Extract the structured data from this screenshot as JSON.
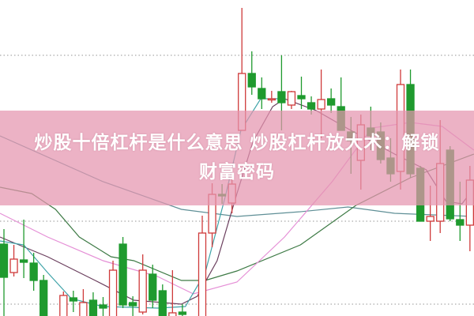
{
  "banner": {
    "title_line1": "炒股十倍杠杆是什么意思 炒股杠杆放大术：解锁",
    "title_line2": "财富密码",
    "background": "#e494af"
  },
  "chart_data": {
    "type": "candlestick",
    "title": "",
    "colors": {
      "up": "#cf3a3a",
      "down": "#1f9a2e",
      "grid": "#aaaaaa"
    },
    "grid": true,
    "candles": [
      {
        "t": 0,
        "o": 9.1,
        "h": 11,
        "l": 0,
        "c": 4.9
      },
      {
        "t": 1,
        "o": 5.5,
        "h": 9,
        "l": 5,
        "c": 7.2
      },
      {
        "t": 2,
        "o": 7.1,
        "h": 12.2,
        "l": 4.8,
        "c": 6.8
      },
      {
        "t": 3,
        "o": 6.7,
        "h": 8,
        "l": 3.2,
        "c": 4.5
      },
      {
        "t": 4,
        "o": 4.5,
        "h": 5.2,
        "l": -1,
        "c": -1
      },
      {
        "t": 6,
        "o": -1,
        "h": 3.1,
        "l": -1,
        "c": 2.6
      },
      {
        "t": 7,
        "o": 2.3,
        "h": 3.2,
        "l": 0.5,
        "c": 1.9
      },
      {
        "t": 8,
        "o": -1,
        "h": 3.4,
        "l": -1,
        "c": 1.7
      },
      {
        "t": 9,
        "o": 2,
        "h": 3,
        "l": -1,
        "c": -1
      },
      {
        "t": 10,
        "o": 1.4,
        "h": 2.4,
        "l": -1,
        "c": 1.0
      },
      {
        "t": 11,
        "o": -1,
        "h": 7,
        "l": -1,
        "c": 5.8
      },
      {
        "t": 12,
        "o": 9.1,
        "h": 10,
        "l": 1,
        "c": 1.4
      },
      {
        "t": 13,
        "o": 1.7,
        "h": 2.5,
        "l": -1,
        "c": 1.3
      },
      {
        "t": 14,
        "o": 0.5,
        "h": 7.8,
        "l": 0.2,
        "c": 5.8
      },
      {
        "t": 15,
        "o": 5.3,
        "h": 6.5,
        "l": 1,
        "c": 2
      },
      {
        "t": 16,
        "o": 3.2,
        "h": 4,
        "l": -1,
        "c": -1
      },
      {
        "t": 17,
        "o": -1,
        "h": 5.8,
        "l": -1,
        "c": 0.4
      },
      {
        "t": 18,
        "o": 0.5,
        "h": 1.5,
        "l": -1,
        "c": 0.2
      },
      {
        "t": 20,
        "o": -1,
        "h": 12.7,
        "l": -1,
        "c": 10.5
      },
      {
        "t": 21,
        "o": 10.5,
        "h": 16.8,
        "l": 8.7,
        "c": 15.4
      },
      {
        "t": 22,
        "o": 15.4,
        "h": 16.7,
        "l": 14.2,
        "c": 15.2
      },
      {
        "t": 23,
        "o": 14.3,
        "h": 17.5,
        "l": 13,
        "c": 16.7
      },
      {
        "t": 24,
        "o": 23.5,
        "h": 39,
        "l": 23.5,
        "c": 30.7
      },
      {
        "t": 25,
        "o": 30.7,
        "h": 33.5,
        "l": 28,
        "c": 29
      },
      {
        "t": 26,
        "o": 28.8,
        "h": 30.2,
        "l": 26.2,
        "c": 27.5
      },
      {
        "t": 27,
        "o": 27.4,
        "h": 28.5,
        "l": 27,
        "c": 27.5
      },
      {
        "t": 28,
        "o": 28.4,
        "h": 33,
        "l": 23.5,
        "c": 27
      },
      {
        "t": 29,
        "o": 26.7,
        "h": 28.5,
        "l": 26.2,
        "c": 28.4
      },
      {
        "t": 30,
        "o": 27.9,
        "h": 30.3,
        "l": 26.2,
        "c": 27.5
      },
      {
        "t": 31,
        "o": 27,
        "h": 27.8,
        "l": 25.5,
        "c": 26.2
      },
      {
        "t": 32,
        "o": 26.2,
        "h": 31.2,
        "l": 22.5,
        "c": 27.4
      },
      {
        "t": 33,
        "o": 27.5,
        "h": 28.8,
        "l": 25.7,
        "c": 26.7
      },
      {
        "t": 34,
        "o": 26.5,
        "h": 30.2,
        "l": 23.5,
        "c": 23.5
      },
      {
        "t": 35,
        "o": 23.3,
        "h": 25.2,
        "l": 18,
        "c": 22.2
      },
      {
        "t": 36,
        "o": 19.7,
        "h": 25.5,
        "l": 16,
        "c": 24.2
      },
      {
        "t": 37,
        "o": 23.8,
        "h": 26.5,
        "l": 21,
        "c": 22.8
      },
      {
        "t": 38,
        "o": 23.3,
        "h": 24.5,
        "l": 19.3,
        "c": 19.8
      },
      {
        "t": 39,
        "o": 20,
        "h": 22.5,
        "l": 17,
        "c": 18
      },
      {
        "t": 40,
        "o": 18.3,
        "h": 31.2,
        "l": 16,
        "c": 29.3
      },
      {
        "t": 41,
        "o": 29.3,
        "h": 31.2,
        "l": 17.5,
        "c": 18
      },
      {
        "t": 42,
        "o": 18.7,
        "h": 19,
        "l": 12,
        "c": 12
      },
      {
        "t": 43,
        "o": 12,
        "h": 16.5,
        "l": 9.5,
        "c": 12.6
      },
      {
        "t": 44,
        "o": 12,
        "h": 24.8,
        "l": 10.5,
        "c": 19.3
      },
      {
        "t": 45,
        "o": 21,
        "h": 21.5,
        "l": 12,
        "c": 12.3
      },
      {
        "t": 46,
        "o": 12.2,
        "h": 17,
        "l": 9.5,
        "c": 11.5
      },
      {
        "t": 47,
        "o": 11.5,
        "h": 19,
        "l": 8.2,
        "c": 17.2
      }
    ],
    "moving_averages": [
      {
        "color": "#5f8f96",
        "points": [
          [
            -0.4,
            22.8
          ],
          [
            10,
            17
          ],
          [
            17.9,
            13.5
          ],
          [
            23.5,
            12.6
          ],
          [
            29.9,
            13.2
          ],
          [
            34.7,
            13.8
          ],
          [
            39.4,
            13
          ],
          [
            47.4,
            12.6
          ]
        ]
      },
      {
        "color": "#3d7a45",
        "points": [
          [
            -0.4,
            16.3
          ],
          [
            2.8,
            15.5
          ],
          [
            5.2,
            13.5
          ],
          [
            7.6,
            10
          ],
          [
            10.8,
            7.5
          ],
          [
            13.1,
            7
          ],
          [
            17.9,
            4.5
          ],
          [
            20.3,
            4.5
          ],
          [
            23.5,
            5.7
          ],
          [
            29.9,
            9
          ],
          [
            35.5,
            14
          ],
          [
            41,
            17.5
          ],
          [
            47.4,
            20.5
          ]
        ]
      },
      {
        "color": "#e58fd6",
        "points": [
          [
            -0.4,
            13
          ],
          [
            4.4,
            10
          ],
          [
            10,
            7
          ],
          [
            15.5,
            5
          ],
          [
            19.1,
            2.8
          ],
          [
            23.5,
            4.3
          ],
          [
            28.3,
            10
          ],
          [
            33.1,
            17
          ],
          [
            37.1,
            23.8
          ],
          [
            41,
            24.5
          ],
          [
            44.2,
            24
          ],
          [
            47.4,
            21
          ]
        ]
      },
      {
        "color": "#6b3f5e",
        "points": [
          [
            -0.4,
            10
          ],
          [
            4.4,
            7.5
          ],
          [
            9.2,
            4.5
          ],
          [
            13.1,
            2
          ],
          [
            17.9,
            1.5
          ],
          [
            19.5,
            2.5
          ],
          [
            21.5,
            7
          ],
          [
            23.5,
            15.5
          ],
          [
            25.1,
            22
          ],
          [
            27.1,
            26.5
          ],
          [
            28.3,
            27.5
          ],
          [
            31.5,
            26
          ],
          [
            34.7,
            23.7
          ],
          [
            39.4,
            20.5
          ],
          [
            42.6,
            18.5
          ],
          [
            44.6,
            14.5
          ],
          [
            46.2,
            14.2
          ],
          [
            47.4,
            16.2
          ]
        ]
      },
      {
        "color": "#3fa3a8",
        "points": [
          [
            -0.4,
            9.5
          ],
          [
            2,
            9
          ],
          [
            4.4,
            5.5
          ],
          [
            6.8,
            2.2
          ],
          [
            10,
            1.2
          ],
          [
            15.5,
            1
          ],
          [
            18.3,
            1.2
          ],
          [
            20.3,
            5.5
          ],
          [
            22.3,
            15
          ],
          [
            23.9,
            23.5
          ],
          [
            25.9,
            27.5
          ],
          [
            28.3,
            27.5
          ]
        ]
      }
    ],
    "gridlines": [
      33,
      12,
      1.5
    ]
  }
}
